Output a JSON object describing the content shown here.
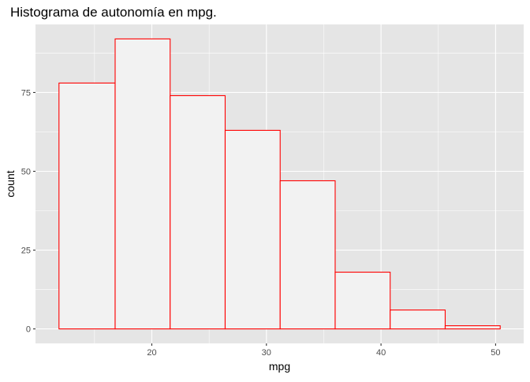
{
  "chart_data": {
    "type": "bar",
    "title": "Histograma de autonomía en mpg.",
    "xlabel": "mpg",
    "ylabel": "count",
    "bin_edges": [
      11.9,
      16.8,
      21.6,
      26.4,
      31.2,
      36.0,
      40.8,
      45.6,
      50.4
    ],
    "values": [
      78,
      92,
      74,
      63,
      47,
      18,
      6,
      1
    ],
    "xlim": [
      9.85,
      52.45
    ],
    "ylim": [
      -4.6,
      96.6
    ],
    "x_ticks": [
      20,
      30,
      40,
      50
    ],
    "x_tick_labels": [
      "20",
      "30",
      "40",
      "50"
    ],
    "y_ticks": [
      0,
      25,
      50,
      75
    ],
    "y_tick_labels": [
      "0",
      "25",
      "50",
      "75"
    ],
    "grid": true,
    "colors": {
      "panel_background": "#e5e5e5",
      "grid_major": "#ffffff",
      "bar_fill": "#f2f2f2",
      "bar_outline": "#ff0000"
    }
  }
}
